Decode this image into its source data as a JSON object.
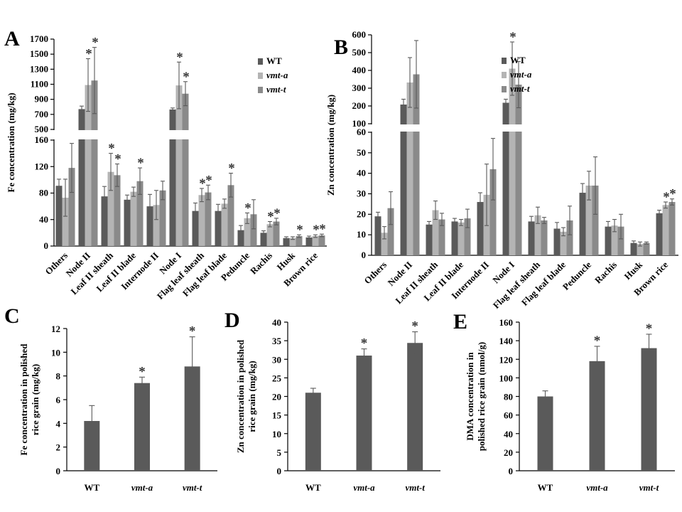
{
  "colors": {
    "wt": "#5a5a5a",
    "vmt_a": "#b4b4b4",
    "vmt_t": "#8a8a8a",
    "axis": "#000000",
    "error": "#5a5a5a"
  },
  "chart_data": [
    {
      "type": "bar",
      "panel": "A",
      "ylabel": "Fe concentration (mg/kg)",
      "legend": [
        "WT",
        "vmt-a",
        "vmt-t"
      ],
      "legend_position": "top-right",
      "categories": [
        "Others",
        "Node II",
        "Leaf II sheath",
        "Leaf II blade",
        "Internode II",
        "Node I",
        "Flag leaf sheath",
        "Flag leaf blade",
        "Peduncle",
        "Rachis",
        "Husk",
        "Brown rice"
      ],
      "axis_break": {
        "lower": [
          0,
          160
        ],
        "upper": [
          500,
          1700
        ]
      },
      "lower_ticks": [
        "0",
        "40",
        "80",
        "120",
        "160"
      ],
      "upper_ticks": [
        "500",
        "700",
        "900",
        "1100",
        "1300",
        "1500",
        "1700"
      ],
      "series": [
        {
          "name": "WT",
          "values": [
            91,
            770,
            75,
            70,
            60,
            765,
            53,
            53,
            24,
            20,
            12,
            13
          ],
          "errors": [
            10,
            40,
            15,
            7,
            18,
            20,
            12,
            10,
            7,
            3,
            2,
            2
          ],
          "sig": [
            false,
            false,
            false,
            false,
            false,
            false,
            false,
            false,
            false,
            false,
            false,
            false
          ]
        },
        {
          "name": "vmt-a",
          "values": [
            73,
            1090,
            112,
            82,
            62,
            1085,
            77,
            64,
            42,
            33,
            12,
            15
          ],
          "errors": [
            28,
            350,
            28,
            7,
            22,
            310,
            10,
            7,
            8,
            4,
            2,
            2
          ],
          "sig": [
            false,
            true,
            true,
            false,
            false,
            true,
            true,
            false,
            true,
            true,
            false,
            true
          ]
        },
        {
          "name": "vmt-t",
          "values": [
            118,
            1150,
            107,
            98,
            84,
            975,
            81,
            92,
            48,
            37,
            15,
            16
          ],
          "errors": [
            37,
            440,
            17,
            20,
            14,
            160,
            11,
            18,
            22,
            5,
            2,
            2
          ],
          "sig": [
            false,
            true,
            true,
            true,
            false,
            true,
            true,
            true,
            false,
            true,
            true,
            true
          ]
        }
      ]
    },
    {
      "type": "bar",
      "panel": "B",
      "ylabel": "Zn concentration (mg/kg)",
      "legend": [
        "WT",
        "vmt-a",
        "vmt-t"
      ],
      "legend_position": "top-right",
      "categories": [
        "Others",
        "Node II",
        "Leaf II sheath",
        "Leaf II blade",
        "Internode II",
        "Node I",
        "Flag leaf sheath",
        "Flag leaf blade",
        "Peduncle",
        "Rachis",
        "Husk",
        "Brown rice"
      ],
      "axis_break": {
        "lower": [
          0,
          60
        ],
        "upper": [
          100,
          600
        ]
      },
      "lower_ticks": [
        "0",
        "10",
        "20",
        "30",
        "40",
        "50",
        "60"
      ],
      "upper_ticks": [
        "100",
        "200",
        "300",
        "400",
        "500",
        "600"
      ],
      "series": [
        {
          "name": "WT",
          "values": [
            19,
            208,
            15,
            16.5,
            26,
            218,
            16.5,
            13,
            30.5,
            14,
            6,
            20.5
          ],
          "errors": [
            2,
            30,
            1.5,
            1.5,
            4.5,
            20,
            2.5,
            3,
            4.5,
            2.5,
            1,
            1.5
          ],
          "sig": [
            false,
            false,
            false,
            false,
            false,
            false,
            false,
            false,
            false,
            false,
            false,
            false
          ]
        },
        {
          "name": "vmt-a",
          "values": [
            11,
            332,
            22,
            16,
            29.5,
            410,
            19.5,
            11.5,
            34,
            14.5,
            5.5,
            24.5
          ],
          "errors": [
            3,
            140,
            4.5,
            1.5,
            15,
            150,
            4,
            2,
            7,
            3,
            1,
            1.5
          ],
          "sig": [
            false,
            false,
            false,
            false,
            false,
            true,
            false,
            false,
            false,
            false,
            false,
            true
          ]
        },
        {
          "name": "vmt-t",
          "values": [
            23,
            378,
            17.5,
            18,
            42,
            320,
            17,
            17,
            34,
            14,
            6,
            26
          ],
          "errors": [
            8,
            190,
            3,
            4.5,
            15,
            130,
            1.5,
            7,
            14,
            6,
            0.5,
            1.5
          ],
          "sig": [
            false,
            false,
            false,
            false,
            false,
            false,
            false,
            false,
            false,
            false,
            false,
            true
          ]
        }
      ]
    },
    {
      "type": "bar",
      "panel": "C",
      "ylabel": "Fe concentration in polished rice grain (mg/kg)",
      "ylabel_lines": [
        "Fe concentration in polished",
        "rice grain (mg/kg)"
      ],
      "categories": [
        "WT",
        "vmt-a",
        "vmt-t"
      ],
      "values": [
        4.2,
        7.4,
        8.8
      ],
      "errors": [
        1.3,
        0.5,
        2.5
      ],
      "sig": [
        false,
        true,
        true
      ],
      "ylim": [
        0,
        12
      ],
      "ticks": [
        "0",
        "2",
        "4",
        "6",
        "8",
        "10",
        "12"
      ]
    },
    {
      "type": "bar",
      "panel": "D",
      "ylabel": "Zn concentration in polished rice grain (mg/kg)",
      "ylabel_lines": [
        "Zn concentration in polished",
        "rice grain (mg/kg)"
      ],
      "categories": [
        "WT",
        "vmt-a",
        "vmt-t"
      ],
      "values": [
        21,
        31,
        34.4
      ],
      "errors": [
        1.2,
        1.8,
        3
      ],
      "sig": [
        false,
        true,
        true
      ],
      "ylim": [
        0,
        40
      ],
      "ticks": [
        "0",
        "5",
        "10",
        "15",
        "20",
        "25",
        "30",
        "35",
        "40"
      ]
    },
    {
      "type": "bar",
      "panel": "E",
      "ylabel": "DMA concentration in polished rice grain (nmol/g)",
      "ylabel_lines": [
        "DMA concentration in",
        "polished rice grain (nmol/g)"
      ],
      "categories": [
        "WT",
        "vmt-a",
        "vmt-t"
      ],
      "values": [
        80,
        118,
        132
      ],
      "errors": [
        6,
        16,
        15
      ],
      "sig": [
        false,
        true,
        true
      ],
      "ylim": [
        0,
        160
      ],
      "ticks": [
        "0",
        "20",
        "40",
        "60",
        "80",
        "100",
        "120",
        "140",
        "160"
      ]
    }
  ]
}
